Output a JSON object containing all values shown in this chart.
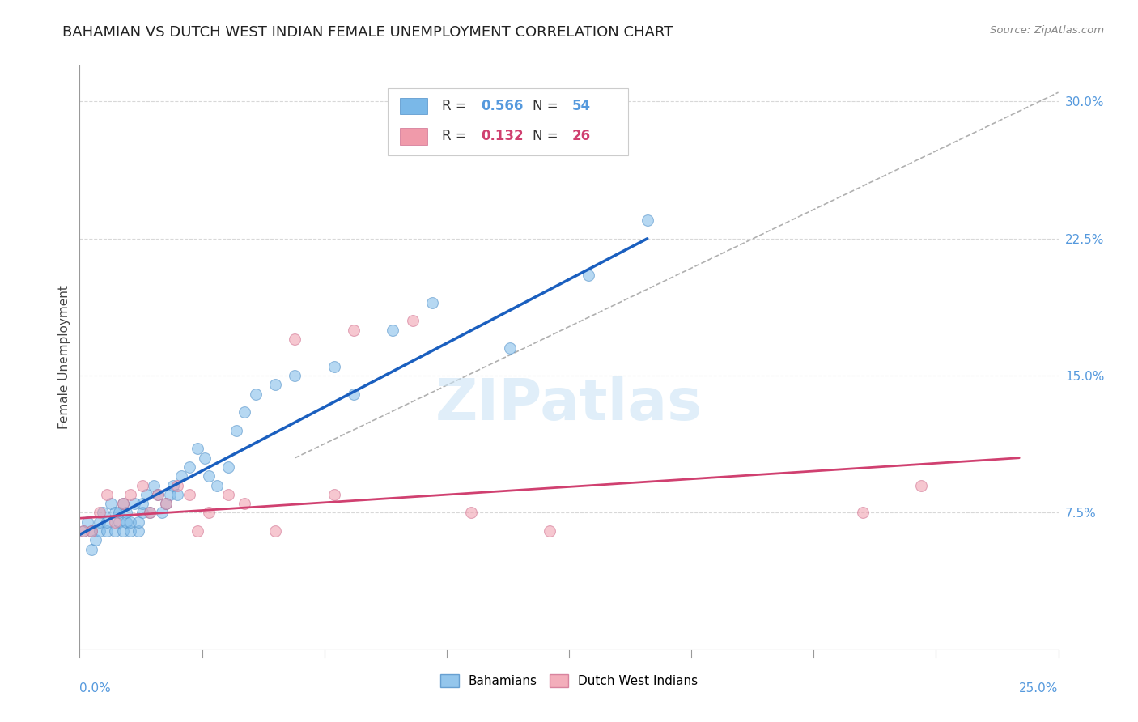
{
  "title": "BAHAMIAN VS DUTCH WEST INDIAN FEMALE UNEMPLOYMENT CORRELATION CHART",
  "source": "Source: ZipAtlas.com",
  "ylabel": "Female Unemployment",
  "y_ticks": [
    0.075,
    0.15,
    0.225,
    0.3
  ],
  "y_tick_labels": [
    "7.5%",
    "15.0%",
    "22.5%",
    "30.0%"
  ],
  "x_lim": [
    0.0,
    0.25
  ],
  "y_lim": [
    0.0,
    0.32
  ],
  "watermark_text": "ZIPatlas",
  "bahamians_x": [
    0.001,
    0.002,
    0.003,
    0.003,
    0.004,
    0.005,
    0.005,
    0.006,
    0.007,
    0.007,
    0.008,
    0.009,
    0.009,
    0.01,
    0.01,
    0.011,
    0.011,
    0.012,
    0.012,
    0.013,
    0.013,
    0.014,
    0.015,
    0.015,
    0.016,
    0.016,
    0.017,
    0.018,
    0.019,
    0.02,
    0.021,
    0.022,
    0.023,
    0.024,
    0.025,
    0.026,
    0.028,
    0.03,
    0.032,
    0.033,
    0.035,
    0.038,
    0.04,
    0.042,
    0.045,
    0.05,
    0.055,
    0.065,
    0.07,
    0.08,
    0.09,
    0.11,
    0.13,
    0.145
  ],
  "bahamians_y": [
    0.065,
    0.07,
    0.055,
    0.065,
    0.06,
    0.065,
    0.07,
    0.075,
    0.065,
    0.07,
    0.08,
    0.065,
    0.075,
    0.07,
    0.075,
    0.065,
    0.08,
    0.07,
    0.075,
    0.065,
    0.07,
    0.08,
    0.065,
    0.07,
    0.075,
    0.08,
    0.085,
    0.075,
    0.09,
    0.085,
    0.075,
    0.08,
    0.085,
    0.09,
    0.085,
    0.095,
    0.1,
    0.11,
    0.105,
    0.095,
    0.09,
    0.1,
    0.12,
    0.13,
    0.14,
    0.145,
    0.15,
    0.155,
    0.14,
    0.175,
    0.19,
    0.165,
    0.205,
    0.235
  ],
  "dutch_x": [
    0.001,
    0.003,
    0.005,
    0.007,
    0.009,
    0.011,
    0.013,
    0.016,
    0.018,
    0.02,
    0.022,
    0.025,
    0.028,
    0.03,
    0.033,
    0.038,
    0.042,
    0.05,
    0.055,
    0.065,
    0.07,
    0.085,
    0.1,
    0.12,
    0.2,
    0.215
  ],
  "dutch_y": [
    0.065,
    0.065,
    0.075,
    0.085,
    0.07,
    0.08,
    0.085,
    0.09,
    0.075,
    0.085,
    0.08,
    0.09,
    0.085,
    0.065,
    0.075,
    0.085,
    0.08,
    0.065,
    0.17,
    0.085,
    0.175,
    0.18,
    0.075,
    0.065,
    0.075,
    0.09
  ],
  "blue_line_x": [
    0.0,
    0.145
  ],
  "blue_line_y": [
    0.063,
    0.225
  ],
  "pink_line_x": [
    0.0,
    0.24
  ],
  "pink_line_y": [
    0.072,
    0.105
  ],
  "dash_line_x": [
    0.055,
    0.25
  ],
  "dash_line_y": [
    0.105,
    0.305
  ],
  "R_blue": "0.566",
  "N_blue": "54",
  "R_pink": "0.132",
  "N_pink": "26",
  "blue_scatter_color": "#7ab8e8",
  "blue_scatter_edge": "#5090c8",
  "pink_scatter_color": "#f09aaa",
  "pink_scatter_edge": "#d07090",
  "blue_line_color": "#1a5fbf",
  "pink_line_color": "#d04070",
  "dash_line_color": "#b0b0b0",
  "grid_color": "#d8d8d8",
  "background_color": "#ffffff",
  "right_tick_color": "#5599dd",
  "title_fontsize": 13,
  "tick_fontsize": 11,
  "ylabel_fontsize": 11,
  "scatter_size": 100,
  "scatter_alpha": 0.55
}
